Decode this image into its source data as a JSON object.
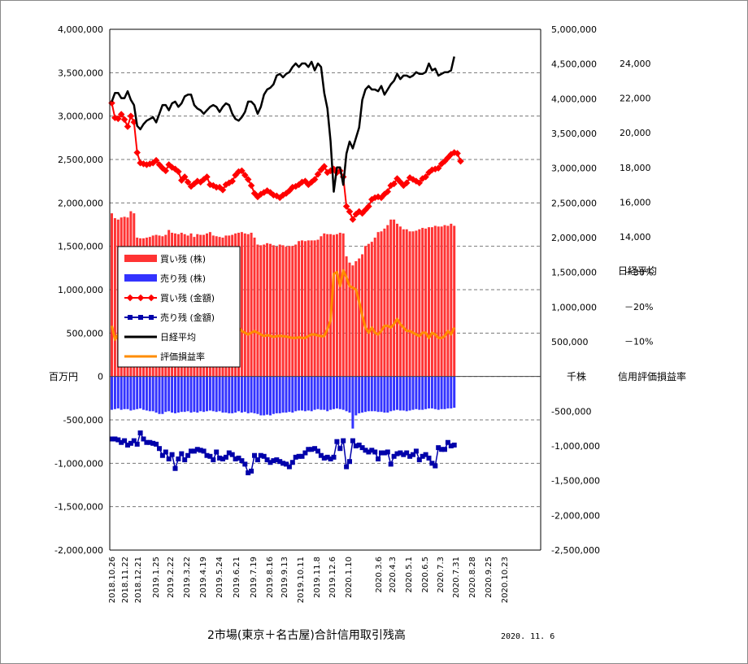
{
  "chart_data": {
    "type": "bar",
    "title": "2市場(東京＋名古屋)合計信用取引残高",
    "date_label": "2020. 11. 6",
    "left_axis": {
      "unit_label": "百万円",
      "ylim": [
        -2000000,
        4000000
      ],
      "ticks": [
        "4,000,000",
        "3,500,000",
        "3,000,000",
        "2,500,000",
        "2,000,000",
        "1,500,000",
        "1,000,000",
        "500,000",
        "0",
        "-500,000",
        "-1,000,000",
        "-1,500,000",
        "-2,000,000"
      ]
    },
    "right_axis": {
      "unit_label": "千株",
      "ylim": [
        -2500000,
        5000000
      ],
      "ticks": [
        "5,000,000",
        "4,500,000",
        "4,000,000",
        "3,500,000",
        "3,000,000",
        "2,500,000",
        "2,000,000",
        "1,500,000",
        "1,000,000",
        "500,000",
        "0",
        "-500,000",
        "-1,000,000",
        "-1,500,000",
        "-2,000,000",
        "-2,500,000"
      ]
    },
    "nikkei_axis": {
      "label": "日経平均",
      "ticks": [
        "24,000",
        "22,000",
        "20,000",
        "18,000",
        "16,000",
        "14,000"
      ]
    },
    "rate_axis": {
      "label": "信用評価損益率",
      "ticks": [
        "－10%",
        "－20%",
        "－30%"
      ]
    },
    "x_tick_labels": [
      "2018.10.26",
      "2018.11.22",
      "2018.12.21",
      "2019.1.25",
      "2019.2.22",
      "2019.3.22",
      "2019.4.19",
      "2019.5.24",
      "2019.6.21",
      "2019.7.19",
      "2019.8.16",
      "2019.9.13",
      "2019.10.11",
      "2019.11.8",
      "2019.12.6",
      "2020.1.10",
      "2020.3.6",
      "2020.4.3",
      "2020.5.1",
      "2020.6.5",
      "2020.7.3",
      "2020.7.31",
      "2020.8.28",
      "2020.9.25",
      "2020.10.23"
    ],
    "legend": [
      {
        "label": "買い残 (株)",
        "color": "#ff3333",
        "shape": "bar"
      },
      {
        "label": "売り残 (株)",
        "color": "#3333ff",
        "shape": "bar"
      },
      {
        "label": "買い残 (金額)",
        "color": "#ff0000",
        "shape": "line-diamond"
      },
      {
        "label": "売り残 (金額)",
        "color": "#0000aa",
        "shape": "line-square"
      },
      {
        "label": "日経平均",
        "color": "#000000",
        "shape": "line"
      },
      {
        "label": "評価損益率",
        "color": "#ff8c00",
        "shape": "line"
      }
    ],
    "series": [
      {
        "name": "買い残 (株)",
        "axis": "right",
        "values": [
          2350000,
          2280000,
          2260000,
          2290000,
          2300000,
          2290000,
          2380000,
          2350000,
          2000000,
          1990000,
          1990000,
          2000000,
          2010000,
          2030000,
          2040000,
          2030000,
          2020000,
          2040000,
          2110000,
          2070000,
          2060000,
          2050000,
          2070000,
          2050000,
          2030000,
          2060000,
          2010000,
          2050000,
          2040000,
          2040000,
          2060000,
          2080000,
          2030000,
          2020000,
          2010000,
          2000000,
          2030000,
          2030000,
          2040000,
          2060000,
          2070000,
          2080000,
          2060000,
          2050000,
          2070000,
          2000000,
          1900000,
          1890000,
          1900000,
          1920000,
          1910000,
          1890000,
          1870000,
          1900000,
          1890000,
          1870000,
          1880000,
          1880000,
          1900000,
          1950000,
          1960000,
          1950000,
          1960000,
          1960000,
          1960000,
          1970000,
          2020000,
          2060000,
          2050000,
          2050000,
          2040000,
          2050000,
          2070000,
          2060000,
          1730000,
          1640000,
          1600000,
          1660000,
          1700000,
          1760000,
          1880000,
          1910000,
          1940000,
          2000000,
          2080000,
          2090000,
          2130000,
          2180000,
          2260000,
          2260000,
          2200000,
          2160000,
          2120000,
          2120000,
          2090000,
          2090000,
          2100000,
          2120000,
          2140000,
          2130000,
          2150000,
          2150000,
          2170000,
          2160000,
          2160000,
          2180000,
          2170000,
          2200000,
          2170000
        ]
      },
      {
        "name": "売り残 (株)",
        "axis": "right",
        "values": [
          -480000,
          -470000,
          -460000,
          -480000,
          -470000,
          -470000,
          -490000,
          -480000,
          -470000,
          -460000,
          -480000,
          -490000,
          -500000,
          -500000,
          -520000,
          -540000,
          -540000,
          -510000,
          -500000,
          -520000,
          -530000,
          -520000,
          -510000,
          -510000,
          -500000,
          -520000,
          -510000,
          -520000,
          -500000,
          -510000,
          -500000,
          -490000,
          -500000,
          -510000,
          -500000,
          -520000,
          -520000,
          -530000,
          -530000,
          -520000,
          -500000,
          -520000,
          -510000,
          -530000,
          -520000,
          -530000,
          -540000,
          -560000,
          -560000,
          -550000,
          -560000,
          -540000,
          -530000,
          -530000,
          -520000,
          -520000,
          -510000,
          -520000,
          -500000,
          -490000,
          -490000,
          -500000,
          -490000,
          -500000,
          -480000,
          -470000,
          -480000,
          -480000,
          -500000,
          -480000,
          -470000,
          -460000,
          -470000,
          -480000,
          -500000,
          -520000,
          -750000,
          -560000,
          -530000,
          -520000,
          -510000,
          -500000,
          -500000,
          -500000,
          -510000,
          -510000,
          -520000,
          -520000,
          -500000,
          -490000,
          -480000,
          -490000,
          -490000,
          -500000,
          -490000,
          -480000,
          -470000,
          -480000,
          -480000,
          -470000,
          -460000,
          -460000,
          -470000,
          -480000,
          -470000,
          -470000,
          -460000,
          -460000,
          -450000
        ]
      },
      {
        "name": "買い残 (金額)",
        "axis": "left",
        "values": [
          3150000,
          2980000,
          2970000,
          3020000,
          2960000,
          2880000,
          3000000,
          2930000,
          2580000,
          2460000,
          2450000,
          2440000,
          2450000,
          2460000,
          2490000,
          2440000,
          2400000,
          2370000,
          2440000,
          2410000,
          2390000,
          2360000,
          2260000,
          2300000,
          2240000,
          2190000,
          2220000,
          2250000,
          2240000,
          2270000,
          2300000,
          2210000,
          2200000,
          2180000,
          2180000,
          2150000,
          2210000,
          2230000,
          2250000,
          2320000,
          2360000,
          2370000,
          2320000,
          2270000,
          2200000,
          2110000,
          2070000,
          2100000,
          2120000,
          2140000,
          2120000,
          2090000,
          2080000,
          2060000,
          2090000,
          2110000,
          2140000,
          2180000,
          2190000,
          2210000,
          2240000,
          2250000,
          2210000,
          2240000,
          2270000,
          2330000,
          2380000,
          2420000,
          2350000,
          2370000,
          2390000,
          2350000,
          2370000,
          2300000,
          1960000,
          1900000,
          1810000,
          1870000,
          1900000,
          1880000,
          1920000,
          1960000,
          2040000,
          2060000,
          2070000,
          2060000,
          2100000,
          2130000,
          2200000,
          2220000,
          2280000,
          2240000,
          2200000,
          2230000,
          2290000,
          2270000,
          2250000,
          2230000,
          2280000,
          2300000,
          2350000,
          2380000,
          2390000,
          2400000,
          2450000,
          2480000,
          2520000,
          2560000,
          2580000,
          2570000,
          2480000
        ]
      },
      {
        "name": "売り残 (金額)",
        "axis": "left",
        "values": [
          -720000,
          -720000,
          -730000,
          -760000,
          -740000,
          -790000,
          -770000,
          -740000,
          -780000,
          -650000,
          -720000,
          -760000,
          -760000,
          -770000,
          -780000,
          -830000,
          -910000,
          -870000,
          -950000,
          -900000,
          -1060000,
          -950000,
          -890000,
          -960000,
          -910000,
          -860000,
          -860000,
          -840000,
          -850000,
          -860000,
          -910000,
          -920000,
          -960000,
          -870000,
          -940000,
          -950000,
          -930000,
          -880000,
          -900000,
          -950000,
          -940000,
          -970000,
          -1010000,
          -1110000,
          -1090000,
          -910000,
          -960000,
          -910000,
          -920000,
          -960000,
          -990000,
          -970000,
          -960000,
          -980000,
          -1000000,
          -1010000,
          -1040000,
          -990000,
          -930000,
          -920000,
          -920000,
          -880000,
          -840000,
          -840000,
          -830000,
          -860000,
          -910000,
          -940000,
          -930000,
          -950000,
          -930000,
          -750000,
          -830000,
          -740000,
          -1040000,
          -980000,
          -740000,
          -800000,
          -790000,
          -820000,
          -850000,
          -870000,
          -850000,
          -870000,
          -950000,
          -880000,
          -880000,
          -870000,
          -1010000,
          -920000,
          -890000,
          -880000,
          -900000,
          -880000,
          -920000,
          -900000,
          -860000,
          -960000,
          -920000,
          -900000,
          -940000,
          -1000000,
          -1030000,
          -820000,
          -840000,
          -840000,
          -760000,
          -800000,
          -790000
        ]
      },
      {
        "name": "日経平均",
        "axis": "nikkei",
        "values": [
          21800,
          22300,
          22300,
          22000,
          22000,
          22400,
          21900,
          21600,
          20400,
          20200,
          20500,
          20700,
          20800,
          20900,
          20600,
          21100,
          21600,
          21600,
          21300,
          21700,
          21800,
          21500,
          21700,
          22100,
          22200,
          22200,
          21600,
          21400,
          21300,
          21100,
          21300,
          21500,
          21600,
          21500,
          21200,
          21500,
          21700,
          21600,
          21100,
          20800,
          20700,
          20900,
          21200,
          21800,
          21800,
          21600,
          21100,
          21500,
          22200,
          22500,
          22600,
          22800,
          23300,
          23400,
          23200,
          23400,
          23500,
          23800,
          24000,
          23800,
          24000,
          24000,
          23800,
          24100,
          23600,
          24000,
          23800,
          22300,
          21400,
          19500,
          16600,
          18000,
          18000,
          17000,
          18800,
          19500,
          19100,
          19700,
          20300,
          21900,
          22500,
          22700,
          22500,
          22500,
          22400,
          22700,
          22200,
          22500,
          22800,
          23000,
          23400,
          23100,
          23300,
          23300,
          23200,
          23300,
          23500,
          23400,
          23400,
          23500,
          24000,
          23600,
          23700,
          23300,
          23400,
          23500,
          23500,
          23600,
          24400
        ]
      },
      {
        "name": "評価損益率",
        "axis": "rate",
        "values": [
          -14.5,
          -10.5,
          -12.0,
          -11.0,
          -12.5,
          -13.5,
          -12.0,
          -14.0,
          -16.0,
          -13.5,
          -13.0,
          -14.0,
          -13.0,
          -13.5,
          -11.5,
          -12.0,
          -13.0,
          -12.0,
          -11.0,
          -13.0,
          -12.5,
          -12.0,
          -12.0,
          -13.5,
          -13.0,
          -13.5,
          -13.5,
          -13.0,
          -12.5,
          -13.0,
          -12.5,
          -12.0,
          null,
          -14.0,
          -14.0,
          -14.0,
          -13.5,
          -13.5,
          -14.5,
          -15.0,
          -14.0,
          -13.0,
          -12.5,
          -12.0,
          -12.5,
          -13.0,
          -12.5,
          -12.0,
          -11.5,
          -11.8,
          -11.6,
          -11.3,
          -11.5,
          -11.6,
          -11.5,
          -11.4,
          -11.2,
          -11.0,
          -11.0,
          -11.2,
          -11.0,
          -11.0,
          -11.5,
          -12.0,
          -12.0,
          -11.7,
          -11.5,
          -11.5,
          -13.5,
          -16.0,
          -29.5,
          -30.0,
          -26.0,
          -30.5,
          -28.5,
          -26.0,
          -25.5,
          -25.0,
          -21.5,
          -17.5,
          -14.0,
          -12.5,
          -14.0,
          -12.5,
          -12.0,
          -13.0,
          -14.5,
          -14.5,
          -14.0,
          -15.0,
          -16.5,
          -15.0,
          -14.0,
          -13.0,
          -13.0,
          -12.5,
          -12.0,
          -11.5,
          -12.5,
          -12.5,
          -11.0,
          -12.5,
          -12.0,
          -11.0,
          -11.0,
          -11.5,
          -13.0,
          -12.0,
          -14.0
        ]
      }
    ]
  }
}
